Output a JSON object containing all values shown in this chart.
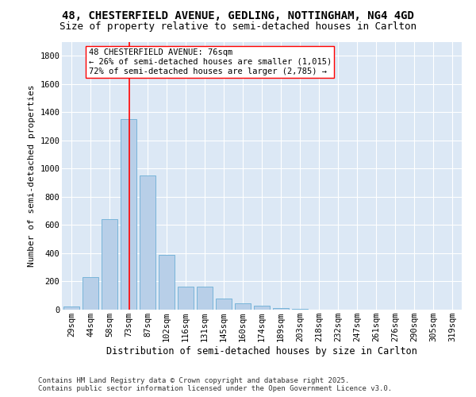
{
  "title1": "48, CHESTERFIELD AVENUE, GEDLING, NOTTINGHAM, NG4 4GD",
  "title2": "Size of property relative to semi-detached houses in Carlton",
  "xlabel": "Distribution of semi-detached houses by size in Carlton",
  "ylabel": "Number of semi-detached properties",
  "categories": [
    "29sqm",
    "44sqm",
    "58sqm",
    "73sqm",
    "87sqm",
    "102sqm",
    "116sqm",
    "131sqm",
    "145sqm",
    "160sqm",
    "174sqm",
    "189sqm",
    "203sqm",
    "218sqm",
    "232sqm",
    "247sqm",
    "261sqm",
    "276sqm",
    "290sqm",
    "305sqm",
    "319sqm"
  ],
  "values": [
    20,
    230,
    640,
    1350,
    950,
    390,
    165,
    165,
    80,
    45,
    30,
    10,
    5,
    0,
    0,
    0,
    0,
    0,
    0,
    0,
    0
  ],
  "bar_color": "#b8cfe8",
  "bar_edge_color": "#6baed6",
  "background_color": "#dce8f5",
  "vline_color": "red",
  "annotation_title": "48 CHESTERFIELD AVENUE: 76sqm",
  "annotation_line1": "← 26% of semi-detached houses are smaller (1,015)",
  "annotation_line2": "72% of semi-detached houses are larger (2,785) →",
  "annotation_box_color": "white",
  "annotation_box_edge_color": "red",
  "footer1": "Contains HM Land Registry data © Crown copyright and database right 2025.",
  "footer2": "Contains public sector information licensed under the Open Government Licence v3.0.",
  "ylim": [
    0,
    1900
  ],
  "yticks": [
    0,
    200,
    400,
    600,
    800,
    1000,
    1200,
    1400,
    1600,
    1800
  ],
  "title1_fontsize": 10,
  "title2_fontsize": 9,
  "xlabel_fontsize": 8.5,
  "ylabel_fontsize": 8,
  "tick_fontsize": 7.5,
  "annotation_fontsize": 7.5,
  "footer_fontsize": 6.5
}
